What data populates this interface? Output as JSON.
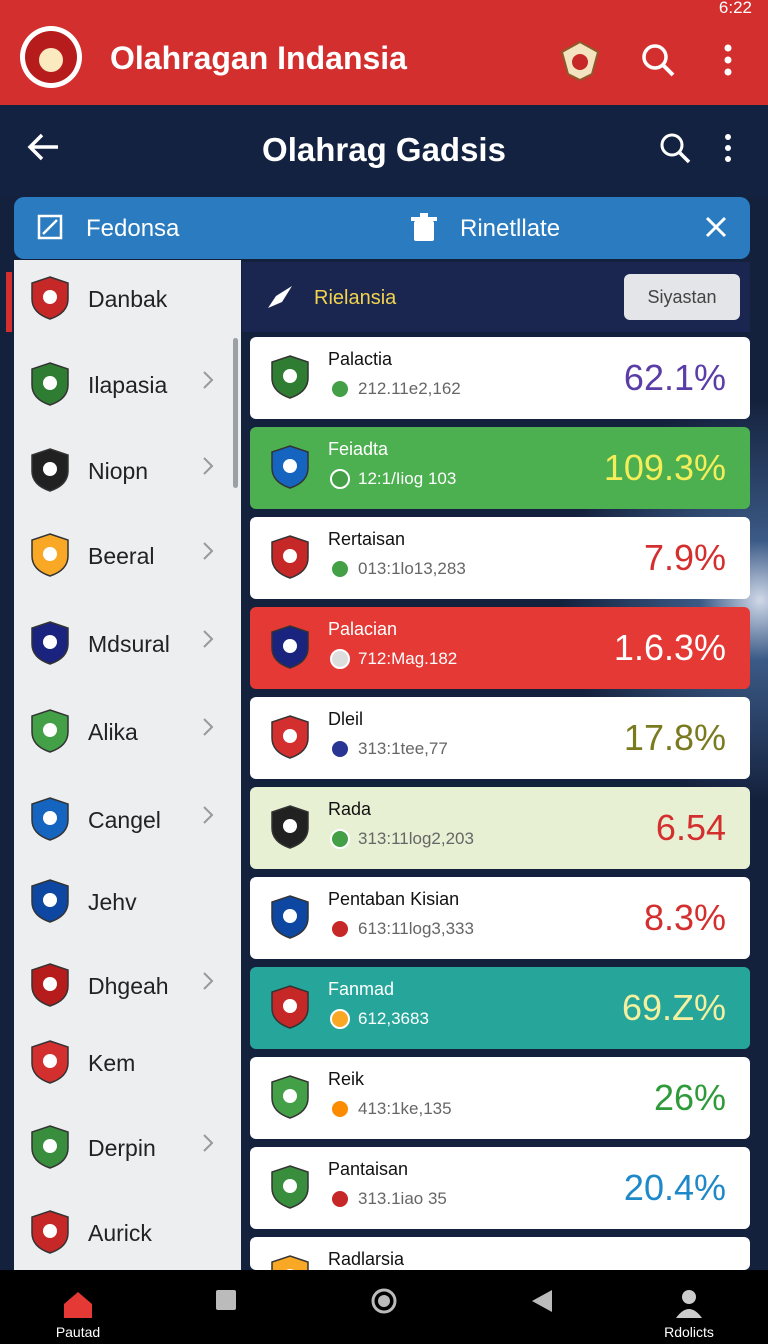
{
  "status_bar": {
    "time": "6:22"
  },
  "app_bar": {
    "title": "Olahragan Indansia"
  },
  "header": {
    "title": "Olahrag Gadsis"
  },
  "tabs": [
    "Fedonsa",
    "Rinetllate"
  ],
  "sidebar": [
    "Danbak",
    "Ilapasia",
    "Niopn",
    "Beeral",
    "Mdsural",
    "Alika",
    "Cangel",
    "Jehv",
    "Dhgeah",
    "Kem",
    "Derpin",
    "Aurick"
  ],
  "panel": {
    "title": "Rielansia",
    "button": "Siyastan"
  },
  "rows": [
    {
      "name": "Palactia",
      "sub": "212.11e2,162",
      "value": "62.1%"
    },
    {
      "name": "Feiadta",
      "sub": "12:1/Iiog 103",
      "value": "109.3%"
    },
    {
      "name": "Rertaisan",
      "sub": "013:1lo13,283",
      "value": "7.9%"
    },
    {
      "name": "Palacian",
      "sub": "712:Mag.182",
      "value": "1.6.3%"
    },
    {
      "name": "Dleil",
      "sub": "313:1tee,77",
      "value": "17.8%"
    },
    {
      "name": "Rada",
      "sub": "313:11log2,203",
      "value": "6.54"
    },
    {
      "name": "Pentaban Kisian",
      "sub": "613:11log3,333",
      "value": "8.3%"
    },
    {
      "name": "Fanmad",
      "sub": "612,3683",
      "value": "69.Z%"
    },
    {
      "name": "Reik",
      "sub": "413:1ke,135",
      "value": "26%"
    },
    {
      "name": "Pantaisan",
      "sub": "313.1iao 35",
      "value": "20.4%"
    },
    {
      "name": "Radlarsia"
    }
  ],
  "bottom_nav": [
    "Pautad",
    "Rdolicts"
  ]
}
